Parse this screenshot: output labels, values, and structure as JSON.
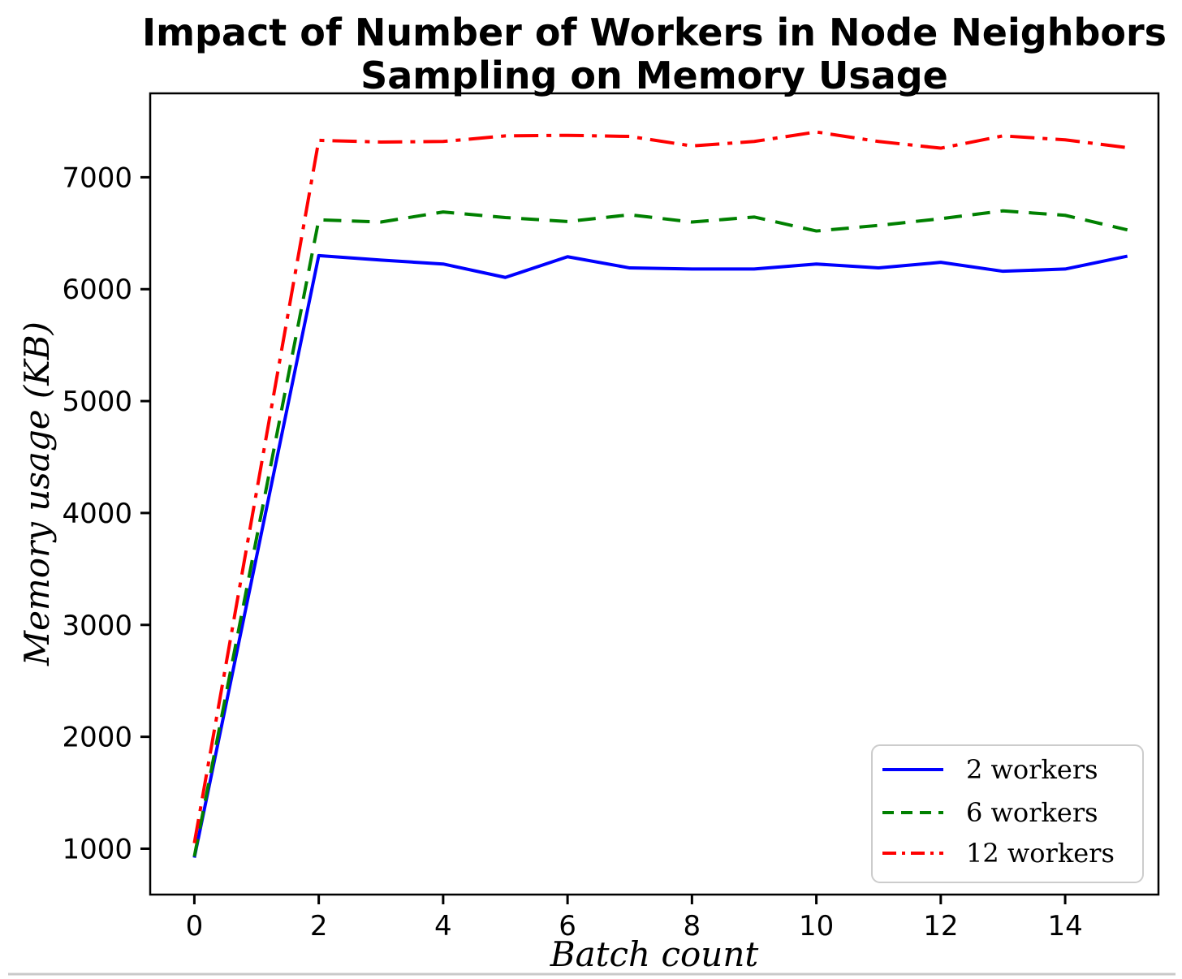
{
  "figure": {
    "title_line1": "Impact of Number of Workers in Node Neighbors",
    "title_line2": "Sampling on Memory Usage",
    "xlabel": "Batch count",
    "ylabel": "Memory usage (KB)"
  },
  "chart_data": {
    "type": "line",
    "title": "Impact of Number of Workers in Node Neighbors Sampling on Memory Usage",
    "xlabel": "Batch count",
    "ylabel": "Memory usage (KB)",
    "x": [
      0,
      2,
      3,
      4,
      5,
      6,
      7,
      8,
      9,
      10,
      11,
      12,
      13,
      14,
      15
    ],
    "series": [
      {
        "name": "2 workers",
        "color": "#0000ff",
        "style": "solid",
        "values": [
          920,
          6300,
          6260,
          6225,
          6105,
          6290,
          6190,
          6180,
          6180,
          6225,
          6190,
          6240,
          6160,
          6180,
          6295
        ]
      },
      {
        "name": "6 workers",
        "color": "#008000",
        "style": "dashed",
        "values": [
          930,
          6620,
          6600,
          6690,
          6640,
          6605,
          6665,
          6600,
          6645,
          6520,
          6570,
          6630,
          6700,
          6660,
          6530
        ]
      },
      {
        "name": "12 workers",
        "color": "#ff0000",
        "style": "dashdot",
        "values": [
          1050,
          7330,
          7315,
          7320,
          7370,
          7375,
          7365,
          7280,
          7320,
          7405,
          7320,
          7260,
          7370,
          7335,
          7265
        ]
      }
    ],
    "xticks": [
      0,
      2,
      4,
      6,
      8,
      10,
      12,
      14
    ],
    "yticks": [
      1000,
      2000,
      3000,
      4000,
      5000,
      6000,
      7000
    ],
    "xlim": [
      -0.71,
      15.5
    ],
    "ylim": [
      590,
      7750
    ],
    "grid": false,
    "legend_position": "lower right"
  }
}
